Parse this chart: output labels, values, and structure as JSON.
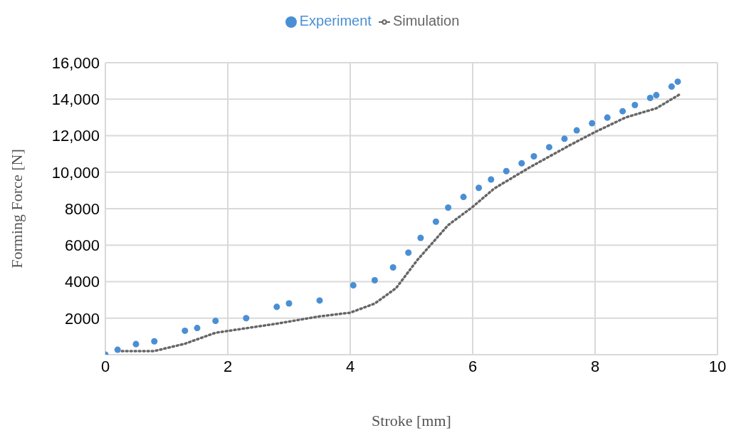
{
  "chart_data": {
    "type": "scatter",
    "xlabel": "Stroke [mm]",
    "ylabel": "Forming Force [N]",
    "xlim": [
      0,
      10
    ],
    "xticks": [
      0,
      2,
      4,
      6,
      8,
      10
    ],
    "ylim": [
      0,
      16000
    ],
    "yticks": [
      {
        "value": 0,
        "label": null
      },
      {
        "value": 2000,
        "label": "2000"
      },
      {
        "value": 4000,
        "label": "4000"
      },
      {
        "value": 6000,
        "label": "6000"
      },
      {
        "value": 8000,
        "label": "8000"
      },
      {
        "value": 10000,
        "label": "10,000"
      },
      {
        "value": 12000,
        "label": "12,000"
      },
      {
        "value": 14000,
        "label": "14,000"
      },
      {
        "value": 16000,
        "label": "16,000"
      }
    ],
    "grid": true,
    "legend": "top",
    "series": [
      {
        "name": "Experiment",
        "marker": "circle",
        "color": "#4a8fd4",
        "x": [
          0,
          0.2,
          0.5,
          0.8,
          1.3,
          1.5,
          1.8,
          2.3,
          2.8,
          3.0,
          3.5,
          4.05,
          4.4,
          4.7,
          4.95,
          5.15,
          5.4,
          5.6,
          5.85,
          6.1,
          6.3,
          6.55,
          6.8,
          7.0,
          7.25,
          7.5,
          7.7,
          7.95,
          8.2,
          8.45,
          8.65,
          8.9,
          9.0,
          9.25,
          9.35
        ],
        "values": [
          0,
          270,
          580,
          730,
          1310,
          1460,
          1850,
          2000,
          2620,
          2810,
          2970,
          3800,
          4080,
          4780,
          5590,
          6400,
          7290,
          8060,
          8640,
          9140,
          9600,
          10060,
          10490,
          10870,
          11370,
          11830,
          12290,
          12680,
          12990,
          13340,
          13680,
          14070,
          14220,
          14690,
          14960
        ]
      },
      {
        "name": "Simulation",
        "type": "line",
        "marker": "none",
        "line_style": "dotted",
        "color": "#666666",
        "x": [
          0.2,
          0.8,
          1.3,
          1.8,
          2.8,
          3.5,
          4.0,
          4.4,
          4.75,
          5.1,
          5.6,
          6.0,
          6.35,
          6.95,
          7.6,
          8.0,
          8.5,
          9.0,
          9.4
        ],
        "values": [
          200,
          200,
          600,
          1200,
          1700,
          2100,
          2300,
          2800,
          3650,
          5200,
          7100,
          8100,
          9100,
          10300,
          11500,
          12200,
          13000,
          13500,
          14300
        ]
      }
    ]
  }
}
